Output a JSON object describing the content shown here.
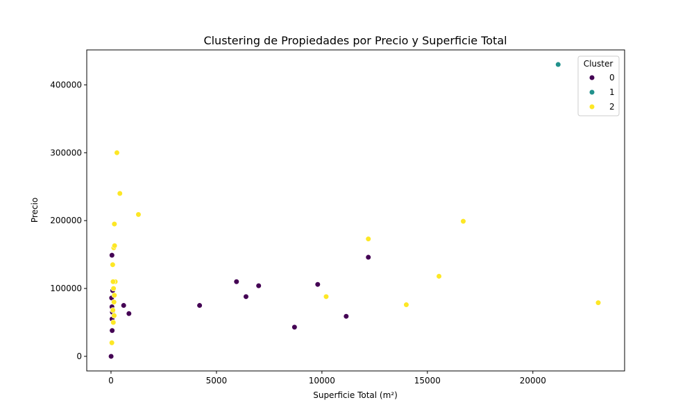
{
  "chart_data": {
    "type": "scatter",
    "title": "Clustering de Propiedades por Precio y Superficie Total",
    "xlabel": "Superficie Total (m²)",
    "ylabel": "Precio",
    "xlim": [
      -1150,
      24350
    ],
    "ylim": [
      -21500,
      451500
    ],
    "xticks": [
      0,
      5000,
      10000,
      15000,
      20000
    ],
    "yticks": [
      0,
      100000,
      200000,
      300000,
      400000
    ],
    "grid": false,
    "legend": {
      "title": "Cluster",
      "position": "top-right",
      "entries": [
        {
          "label": "0",
          "color": "#440154"
        },
        {
          "label": "1",
          "color": "#21918c"
        },
        {
          "label": "2",
          "color": "#fde725"
        }
      ]
    },
    "series": [
      {
        "name": "0",
        "color": "#440154",
        "points": [
          [
            5,
            0
          ],
          [
            55,
            38000
          ],
          [
            50,
            55000
          ],
          [
            65,
            65000
          ],
          [
            45,
            73000
          ],
          [
            30,
            86000
          ],
          [
            80,
            97000
          ],
          [
            45,
            149000
          ],
          [
            600,
            75000
          ],
          [
            850,
            63000
          ],
          [
            4200,
            75000
          ],
          [
            5950,
            110000
          ],
          [
            6400,
            88000
          ],
          [
            7000,
            104000
          ],
          [
            8700,
            43000
          ],
          [
            9800,
            106000
          ],
          [
            11150,
            59000
          ],
          [
            12200,
            146000
          ]
        ]
      },
      {
        "name": "1",
        "color": "#21918c",
        "points": [
          [
            21200,
            430000
          ]
        ]
      },
      {
        "name": "2",
        "color": "#fde725",
        "points": [
          [
            40,
            20000
          ],
          [
            110,
            50000
          ],
          [
            150,
            60000
          ],
          [
            90,
            68000
          ],
          [
            140,
            80000
          ],
          [
            160,
            90000
          ],
          [
            120,
            100000
          ],
          [
            200,
            110000
          ],
          [
            100,
            110000
          ],
          [
            80,
            135000
          ],
          [
            130,
            160000
          ],
          [
            170,
            163000
          ],
          [
            160,
            195000
          ],
          [
            280,
            300000
          ],
          [
            420,
            240000
          ],
          [
            1300,
            209000
          ],
          [
            10200,
            88000
          ],
          [
            12200,
            173000
          ],
          [
            14000,
            76000
          ],
          [
            15550,
            118000
          ],
          [
            16700,
            199000
          ],
          [
            23100,
            79000
          ]
        ]
      }
    ]
  }
}
